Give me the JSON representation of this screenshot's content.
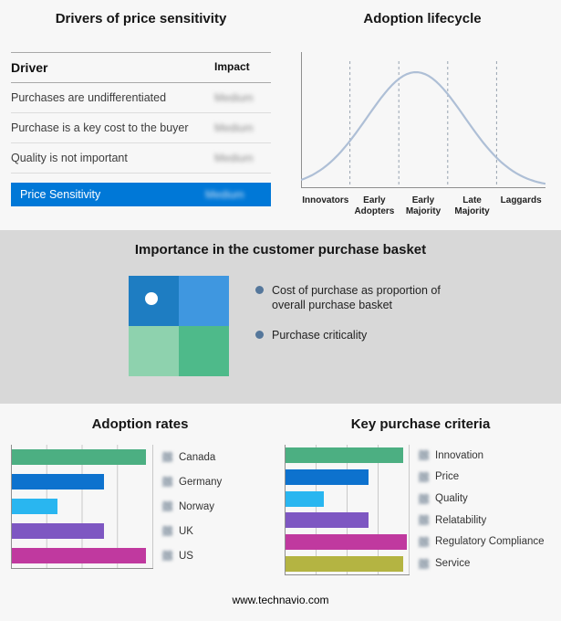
{
  "footer": {
    "text": "www.technavio.com"
  },
  "drivers": {
    "title": "Drivers of price sensitivity",
    "columns": {
      "driver": "Driver",
      "impact": "Impact"
    },
    "rows": [
      {
        "driver": "Purchases are undifferentiated",
        "impact": "Medium"
      },
      {
        "driver": "Purchase is a key cost to the buyer",
        "impact": "Medium"
      },
      {
        "driver": "Quality is not important",
        "impact": "Medium"
      }
    ],
    "summary": {
      "label": "Price Sensitivity",
      "impact": "Medium"
    },
    "highlight_color": "#0078d7"
  },
  "basket": {
    "title": "Importance in the customer purchase basket",
    "legend": [
      "Cost of purchase as proportion of overall purchase basket",
      "Purchase criticality"
    ],
    "bullet_color": "#55779b",
    "quadrant_colors": {
      "top_left": "#1e7dc2",
      "top_right": "#3f97e0",
      "bottom_left": "#8ed2ae",
      "bottom_right": "#4eba8a"
    },
    "marker": {
      "quadrant": "top-left",
      "color": "#ffffff"
    }
  },
  "chart_data": [
    {
      "id": "adoption-lifecycle",
      "type": "line",
      "title": "Adoption lifecycle",
      "x": [
        "Innovators",
        "Early Adopters",
        "Early Majority",
        "Late Majority",
        "Laggards"
      ],
      "y_relative": [
        8,
        52,
        100,
        52,
        8
      ],
      "shape": "bell-curve",
      "color": "#aebfd6",
      "separators": "dashed-vertical-between-stages",
      "axes": "unlabeled"
    },
    {
      "id": "adoption-rates",
      "type": "bar",
      "orientation": "horizontal",
      "title": "Adoption rates",
      "categories": [
        "Canada",
        "Germany",
        "Norway",
        "UK",
        "US"
      ],
      "values_pct": [
        95,
        65,
        32,
        65,
        95
      ],
      "colors": [
        "#4caf82",
        "#0d72ce",
        "#29b6f0",
        "#7e57c2",
        "#c0399f"
      ],
      "xlim": [
        0,
        100
      ],
      "gridlines": true,
      "icon": "flag-icon"
    },
    {
      "id": "key-purchase-criteria",
      "type": "bar",
      "orientation": "horizontal",
      "title": "Key purchase criteria",
      "categories": [
        "Innovation",
        "Price",
        "Quality",
        "Relatability",
        "Regulatory Compliance",
        "Service"
      ],
      "values_pct": [
        95,
        67,
        31,
        67,
        98,
        95
      ],
      "colors": [
        "#4caf82",
        "#0d72ce",
        "#29b6f0",
        "#7e57c2",
        "#c0399f",
        "#b4b442"
      ],
      "xlim": [
        0,
        100
      ],
      "gridlines": true,
      "icon": "criteria-icon"
    }
  ]
}
